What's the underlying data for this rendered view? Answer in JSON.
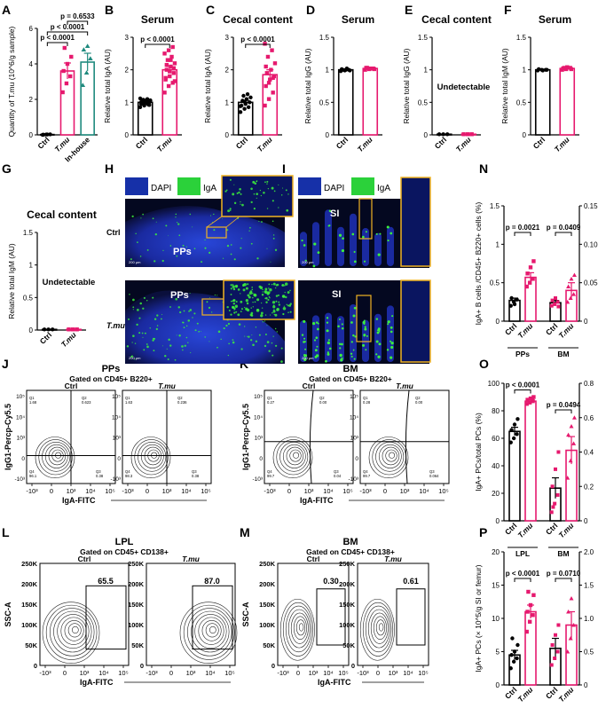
{
  "colors": {
    "ctrl": "#000000",
    "tmu": "#e6196e",
    "inhouse": "#1f8a7e",
    "dapi": "#1630a8",
    "iga": "#2bd13a",
    "box": "#f0b323",
    "micro_bg": "#0a0f3c"
  },
  "chart_data": [
    {
      "panel": "A",
      "type": "bar",
      "title": "",
      "ylabel": "Quantity of T.mu (10^6/g sample)",
      "ylim": [
        0,
        6
      ],
      "yticks": [
        0,
        2,
        4,
        6
      ],
      "categories": [
        "Ctrl",
        "T.mu",
        "In-house"
      ],
      "values": [
        0.02,
        3.6,
        4.1
      ],
      "errors": [
        0.02,
        0.45,
        0.5
      ],
      "points": [
        [
          0,
          0.02,
          0.03,
          0.01,
          0.02
        ],
        [
          2.4,
          2.9,
          3.3,
          3.6,
          4.0,
          4.4,
          4.9
        ],
        [
          2.8,
          3.5,
          4.3,
          4.8,
          5.0
        ]
      ],
      "sig": [
        {
          "from": 0,
          "to": 1,
          "label": "p < 0.0001"
        },
        {
          "from": 0,
          "to": 2,
          "label": "p < 0.0001"
        },
        {
          "from": 1,
          "to": 2,
          "label": "p = 0.6533"
        }
      ]
    },
    {
      "panel": "B",
      "type": "bar",
      "title": "Serum",
      "ylabel": "Relative total IgA (AU)",
      "ylim": [
        0,
        3
      ],
      "yticks": [
        0,
        1,
        2,
        3
      ],
      "categories": [
        "Ctrl",
        "T.mu"
      ],
      "values": [
        1.0,
        2.0
      ],
      "errors": [
        0.03,
        0.1
      ],
      "points": [
        [
          0.85,
          0.9,
          0.93,
          0.95,
          0.97,
          1.0,
          1.02,
          1.04,
          1.06,
          1.08,
          1.1,
          1.12,
          0.96,
          0.99,
          1.01,
          1.05,
          0.92,
          1.03
        ],
        [
          1.3,
          1.5,
          1.6,
          1.7,
          1.8,
          1.9,
          2.0,
          2.1,
          2.2,
          2.3,
          2.4,
          2.5,
          2.6,
          2.7,
          1.75,
          1.95,
          2.05,
          2.15,
          2.3,
          1.65
        ]
      ],
      "sig": [
        {
          "from": 0,
          "to": 1,
          "label": "p < 0.0001"
        }
      ]
    },
    {
      "panel": "C",
      "type": "bar",
      "title": "Cecal content",
      "ylabel": "Relative total IgA (AU)",
      "ylim": [
        0,
        3
      ],
      "yticks": [
        0,
        1,
        2,
        3
      ],
      "categories": [
        "Ctrl",
        "T.mu"
      ],
      "values": [
        1.0,
        1.85
      ],
      "errors": [
        0.06,
        0.15
      ],
      "points": [
        [
          0.7,
          0.8,
          0.85,
          0.9,
          0.95,
          1.0,
          1.05,
          1.1,
          1.15,
          1.2,
          1.25,
          0.88,
          1.02
        ],
        [
          0.9,
          1.1,
          1.3,
          1.5,
          1.7,
          1.8,
          1.9,
          2.0,
          2.2,
          2.4,
          2.6,
          2.8,
          1.6,
          1.75,
          2.1
        ]
      ],
      "sig": [
        {
          "from": 0,
          "to": 1,
          "label": "p < 0.0001"
        }
      ]
    },
    {
      "panel": "D",
      "type": "bar",
      "title": "Serum",
      "ylabel": "Relative total IgG (AU)",
      "ylim": [
        0,
        1.5
      ],
      "yticks": [
        0,
        0.5,
        1.0,
        1.5
      ],
      "categories": [
        "Ctrl",
        "T.mu"
      ],
      "values": [
        1.0,
        1.02
      ],
      "errors": [
        0.01,
        0.01
      ],
      "points": [
        [
          0.98,
          0.99,
          1.0,
          1.01,
          1.0,
          0.99,
          1.0,
          1.02
        ],
        [
          1.0,
          1.01,
          1.02,
          1.03,
          1.02,
          1.01,
          1.03,
          1.02
        ]
      ],
      "sig": []
    },
    {
      "panel": "E",
      "type": "bar",
      "title": "Cecal content",
      "ylabel": "Relative total IgG (AU)",
      "ylim": [
        0,
        1.5
      ],
      "yticks": [
        0,
        0.5,
        1.0,
        1.5
      ],
      "categories": [
        "Ctrl",
        "T.mu"
      ],
      "values": [
        0.01,
        0.01
      ],
      "errors": [
        0,
        0
      ],
      "points": [
        [
          0.01,
          0.01,
          0.01
        ],
        [
          0.01,
          0.01,
          0.01
        ]
      ],
      "annotation": "Undetectable",
      "sig": []
    },
    {
      "panel": "F",
      "type": "bar",
      "title": "Serum",
      "ylabel": "Relative total IgM (AU)",
      "ylim": [
        0,
        1.5
      ],
      "yticks": [
        0,
        0.5,
        1.0,
        1.5
      ],
      "categories": [
        "Ctrl",
        "T.mu"
      ],
      "values": [
        1.0,
        1.02
      ],
      "errors": [
        0.01,
        0.01
      ],
      "points": [
        [
          0.99,
          1.0,
          1.0,
          1.01,
          0.99,
          1.0
        ],
        [
          1.0,
          1.01,
          1.03,
          1.02,
          1.04,
          1.01,
          1.03
        ]
      ],
      "sig": []
    },
    {
      "panel": "G",
      "type": "bar",
      "title": "Cecal content",
      "ylabel": "Relative total IgM (AU)",
      "ylim": [
        0,
        1.5
      ],
      "yticks": [
        0,
        0.5,
        1.0,
        1.5
      ],
      "categories": [
        "Ctrl",
        "T.mu"
      ],
      "values": [
        0.01,
        0.01
      ],
      "errors": [
        0,
        0
      ],
      "points": [
        [
          0.01,
          0.01,
          0.01
        ],
        [
          0.01,
          0.01,
          0.01
        ]
      ],
      "annotation": "Undetectable",
      "sig": []
    },
    {
      "panel": "N",
      "type": "bar",
      "ylabel": "IgA+ B cells /CD45+ B220+ cells (%)",
      "ylim": [
        0,
        1.5
      ],
      "yticks": [
        0,
        0.5,
        1.0,
        1.5
      ],
      "y2lim": [
        0,
        0.15
      ],
      "y2ticks": [
        0,
        0.05,
        0.1,
        0.15
      ],
      "groups": [
        "PPs",
        "BM"
      ],
      "categories": [
        "Ctrl",
        "T.mu",
        "Ctrl",
        "T.mu"
      ],
      "values": [
        0.27,
        0.57,
        0.024,
        0.04
      ],
      "errors": [
        0.03,
        0.06,
        0.003,
        0.01
      ],
      "points": [
        [
          0.2,
          0.25,
          0.28,
          0.3,
          0.22
        ],
        [
          0.45,
          0.5,
          0.55,
          0.62,
          0.7,
          0.78
        ],
        [
          0.02,
          0.022,
          0.025,
          0.027,
          0.03,
          0.019
        ],
        [
          0.025,
          0.03,
          0.035,
          0.045,
          0.055,
          0.06
        ]
      ],
      "sig": [
        {
          "from": 0,
          "to": 1,
          "label": "p = 0.0021"
        },
        {
          "from": 2,
          "to": 3,
          "label": "p = 0.0409"
        }
      ]
    },
    {
      "panel": "O",
      "type": "bar",
      "ylabel": "IgA+ PCs/total PCs (%)",
      "ylim": [
        0,
        100
      ],
      "yticks": [
        0,
        20,
        40,
        60,
        80,
        100
      ],
      "y2lim": [
        0,
        0.8
      ],
      "y2ticks": [
        0,
        0.2,
        0.4,
        0.6,
        0.8
      ],
      "groups": [
        "LPL",
        "BM"
      ],
      "categories": [
        "Ctrl",
        "T.mu",
        "Ctrl",
        "T.mu"
      ],
      "values": [
        65,
        87,
        0.19,
        0.41
      ],
      "errors": [
        3,
        1.5,
        0.06,
        0.08
      ],
      "points": [
        [
          57,
          60,
          63,
          66,
          70,
          74
        ],
        [
          85,
          86,
          87,
          88,
          89,
          90
        ],
        [
          0.05,
          0.1,
          0.15,
          0.2,
          0.3,
          0.4,
          0.08
        ],
        [
          0.25,
          0.35,
          0.45,
          0.5,
          0.55,
          0.6
        ]
      ],
      "sig": [
        {
          "from": 0,
          "to": 1,
          "label": "p < 0.0001"
        },
        {
          "from": 2,
          "to": 3,
          "label": "p = 0.0494"
        }
      ]
    },
    {
      "panel": "P",
      "type": "bar",
      "ylabel": "IgA+ PCs (× 10^5/g SI or femur)",
      "ylim": [
        0,
        20
      ],
      "yticks": [
        0,
        5,
        10,
        15,
        20
      ],
      "y2lim": [
        0,
        2.0
      ],
      "y2ticks": [
        0,
        0.5,
        1.0,
        1.5,
        2.0
      ],
      "groups": [
        "LPL",
        "BM"
      ],
      "categories": [
        "Ctrl",
        "T.mu",
        "Ctrl",
        "T.mu"
      ],
      "values": [
        4.5,
        11,
        0.55,
        0.9
      ],
      "errors": [
        0.7,
        1.0,
        0.15,
        0.2
      ],
      "points": [
        [
          2.5,
          3.5,
          4,
          4.5,
          5,
          6,
          7
        ],
        [
          8,
          9.5,
          10.5,
          11,
          12,
          13.5,
          14
        ],
        [
          0.3,
          0.4,
          0.5,
          0.6,
          0.75,
          0.9
        ],
        [
          0.5,
          0.7,
          0.9,
          1.1,
          1.3
        ]
      ],
      "sig": [
        {
          "from": 0,
          "to": 1,
          "label": "p < 0.0001"
        },
        {
          "from": 2,
          "to": 3,
          "label": "p = 0.0710"
        }
      ]
    }
  ],
  "panel_labels": {
    "A": "A",
    "B": "B",
    "C": "C",
    "D": "D",
    "E": "E",
    "F": "F",
    "G": "G",
    "H": "H",
    "I": "I",
    "J": "J",
    "K": "K",
    "L": "L",
    "M": "M",
    "N": "N",
    "O": "O",
    "P": "P"
  },
  "group_labels": {
    "ctrl": "Ctrl",
    "tmu": "T.mu",
    "inhouse": "In-house"
  },
  "microscopy": {
    "legend_dapi": "DAPI",
    "legend_iga": "IgA",
    "h_label": "PPs",
    "i_label": "SI",
    "row_ctrl": "Ctrl",
    "row_tmu": "T.mu",
    "scale": "200 μm"
  },
  "flow": {
    "J": {
      "title": "PPs",
      "subtitle": "Gated on CD45+ B220+",
      "xlabel": "IgA-FITC",
      "ylabel": "IgG1-Percp-Cy5.5",
      "ctrl_q": [
        "Q1\n1.68",
        "Q2\n0.623",
        "Q3\n0.38",
        "Q4\n96.1"
      ],
      "tmu_q": [
        "Q1\n1.63",
        "Q2\n0.236",
        "Q3\n0.38",
        "Q4\n98.3"
      ]
    },
    "K": {
      "title": "BM",
      "subtitle": "Gated on CD45+ B220+",
      "xlabel": "IgA-FITC",
      "ylabel": "IgG1-Percp-Cy5.5",
      "ctrl_q": [
        "Q1\n0.27",
        "Q2\n0.00",
        "Q3\n0.04",
        "Q4\n99.7"
      ],
      "tmu_q": [
        "Q1\n0.28",
        "Q2\n0.00",
        "Q3\n0.064",
        "Q4\n99.7"
      ]
    },
    "L": {
      "title": "LPL",
      "subtitle": "Gated on CD45+ CD138+",
      "xlabel": "IgA-FITC",
      "ylabel": "SSC-A",
      "ctrl_gate": "65.5",
      "tmu_gate": "87.0",
      "yticks": [
        "0",
        "50K",
        "100K",
        "150K",
        "200K",
        "250K"
      ]
    },
    "M": {
      "title": "BM",
      "subtitle": "Gated on CD45+ CD138+",
      "xlabel": "IgA-FITC",
      "ylabel": "SSC-A",
      "ctrl_gate": "0.30",
      "tmu_gate": "0.61",
      "yticks": [
        "0",
        "50K",
        "100K",
        "150K",
        "200K",
        "250K"
      ]
    },
    "log_ticks": [
      "-10³",
      "0",
      "10³",
      "10⁴",
      "10⁵"
    ]
  }
}
